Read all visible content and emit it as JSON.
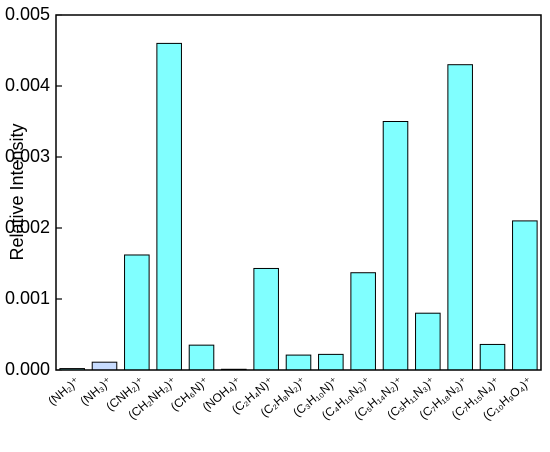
{
  "chart_data": {
    "type": "bar",
    "y_label": "Relative Intensity",
    "categories": [
      "(NH₂)⁺",
      "(NH₃)⁺",
      "(CNH₂)⁺",
      "(CH₂NH₂)⁺",
      "(CH₆N)⁺",
      "(NOH₄)⁺",
      "(C₂H₄N)⁺",
      "(C₂H₈N₂)⁺",
      "(C₃H₁₀N)⁺",
      "(C₄H₁₀N₂)⁺",
      "(C₅H₁₄N₂)⁺",
      "(C₅H₁₁N₃)⁺",
      "(C₇H₁₈N₂)⁺",
      "(C₇H₁₅N₄)⁺",
      "(C₁₀H₉O₄)⁺"
    ],
    "values": [
      2e-05,
      0.00011,
      0.00162,
      0.0046,
      0.00035,
      1e-05,
      0.00143,
      0.00021,
      0.00022,
      0.00137,
      0.0035,
      0.0008,
      0.0043,
      0.00036,
      0.0021
    ],
    "colors": [
      "#80ffff",
      "#c8dcff",
      "#80ffff",
      "#80ffff",
      "#80ffff",
      "#80ffff",
      "#80ffff",
      "#80ffff",
      "#80ffff",
      "#80ffff",
      "#80ffff",
      "#80ffff",
      "#80ffff",
      "#80ffff",
      "#80ffff"
    ],
    "ylim": [
      0,
      0.005
    ],
    "yticks": [
      {
        "value": 0,
        "label": "0.000"
      },
      {
        "value": 0.001,
        "label": "0.001"
      },
      {
        "value": 0.002,
        "label": "0.002"
      },
      {
        "value": 0.003,
        "label": "0.003"
      },
      {
        "value": 0.004,
        "label": "0.004"
      },
      {
        "value": 0.005,
        "label": "0.005"
      }
    ]
  }
}
